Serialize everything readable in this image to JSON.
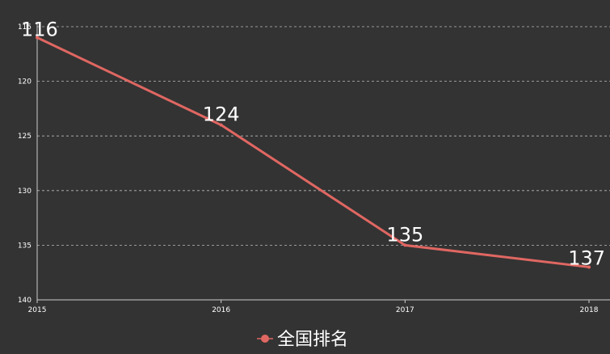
{
  "chart_data": {
    "type": "line",
    "x": [
      "2015",
      "2016",
      "2017",
      "2018"
    ],
    "series": [
      {
        "name": "全国排名",
        "values": [
          116,
          124,
          135,
          137
        ]
      }
    ],
    "ylim": [
      115,
      140
    ],
    "y_ticks": [
      115,
      120,
      125,
      130,
      135,
      140
    ],
    "y_inverted": true,
    "grid": "horizontal-dashed",
    "legend_position": "bottom-center",
    "title": "",
    "xlabel": "",
    "ylabel": ""
  },
  "colors": {
    "background": "#333333",
    "series": "#e06762",
    "axis": "#cccccc",
    "grid": "#bbbbbb",
    "text": "#ffffff"
  }
}
